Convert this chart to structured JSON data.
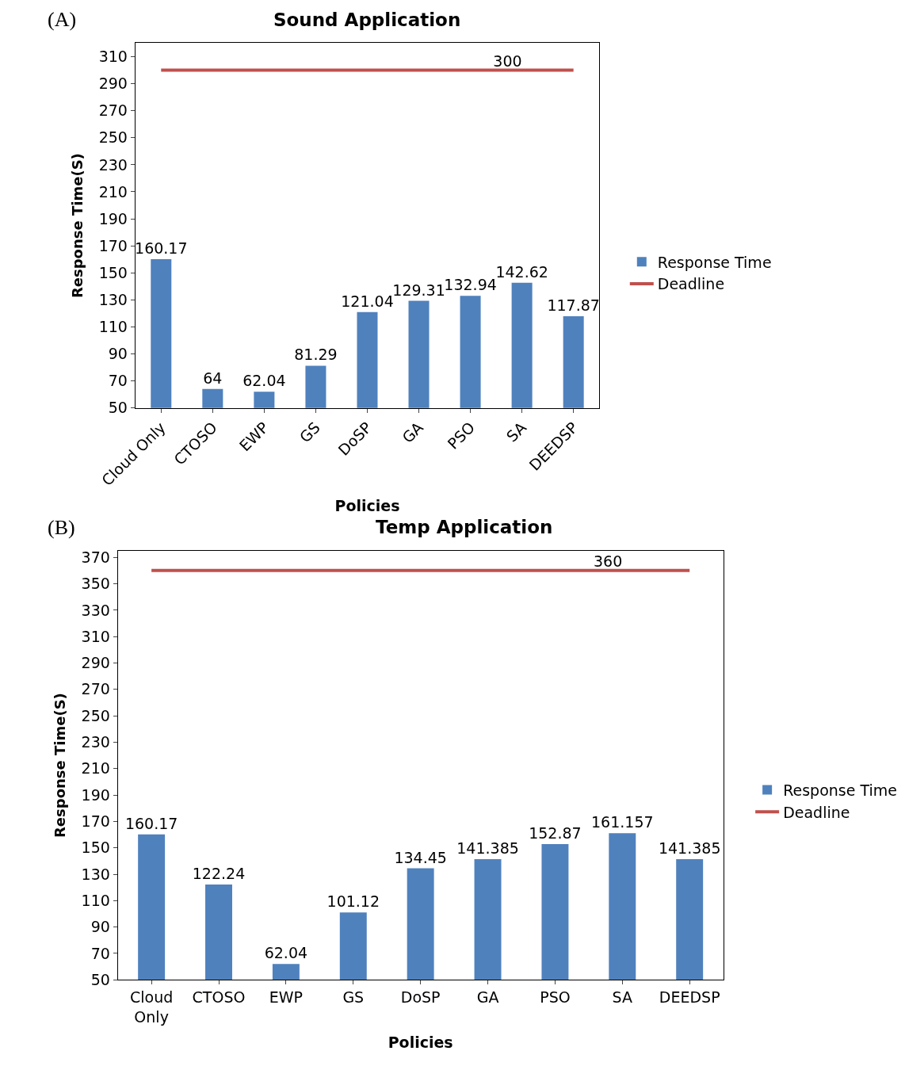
{
  "chart_data": [
    {
      "type": "bar",
      "title": "Sound Application",
      "xlabel": "Policies",
      "ylabel": "Response Time(S)",
      "annotations": [
        "(A)"
      ],
      "categories": [
        "Cloud Only",
        "CTOSO",
        "EWP",
        "GS",
        "DoSP",
        "GA",
        "PSO",
        "SA",
        "DEEDSP"
      ],
      "series": [
        {
          "name": "Response Time",
          "color": "#4f81bd",
          "values": [
            160.17,
            64,
            62.04,
            81.29,
            121.04,
            129.31,
            132.94,
            142.62,
            117.87
          ]
        },
        {
          "name": "Deadline",
          "type": "line",
          "color": "#c0504d",
          "values": [
            300,
            300,
            300,
            300,
            300,
            300,
            300,
            300,
            300
          ],
          "value_labels": [
            null,
            null,
            null,
            null,
            null,
            null,
            null,
            "300",
            null
          ]
        }
      ],
      "data_labels": true,
      "ylim": [
        50,
        320
      ],
      "yticks": [
        50,
        70,
        90,
        110,
        130,
        150,
        170,
        190,
        210,
        230,
        250,
        270,
        290,
        310
      ],
      "grid": false,
      "legend": "right"
    },
    {
      "type": "bar",
      "title": "Temp Application",
      "xlabel": "Policies",
      "ylabel": "Response Time(S)",
      "annotations": [
        "(B)"
      ],
      "categories": [
        "Cloud Only",
        "CTOSO",
        "EWP",
        "GS",
        "DoSP",
        "GA",
        "PSO",
        "SA",
        "DEEDSP"
      ],
      "series": [
        {
          "name": "Response Time",
          "color": "#4f81bd",
          "values": [
            160.17,
            122.24,
            62.04,
            101.12,
            134.45,
            141.385,
            152.87,
            161.157,
            141.385
          ]
        },
        {
          "name": "Deadline",
          "type": "line",
          "color": "#c0504d",
          "values": [
            360,
            360,
            360,
            360,
            360,
            360,
            360,
            360,
            360
          ],
          "value_labels": [
            null,
            null,
            null,
            null,
            null,
            null,
            null,
            "360",
            null
          ]
        }
      ],
      "data_labels": true,
      "ylim": [
        50,
        375
      ],
      "yticks": [
        50,
        70,
        90,
        110,
        130,
        150,
        170,
        190,
        210,
        230,
        250,
        270,
        290,
        310,
        330,
        350,
        370
      ],
      "grid": false,
      "legend": "right"
    }
  ]
}
